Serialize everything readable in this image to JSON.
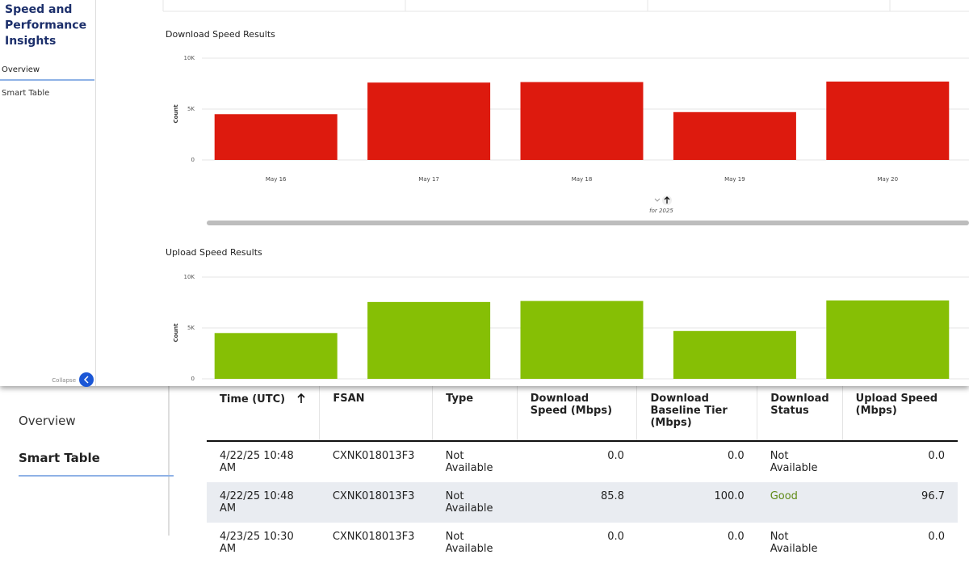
{
  "chart_data": [
    {
      "type": "bar",
      "title": "Download Speed Results",
      "y_label": "Count",
      "x_label": "for 2025",
      "categories": [
        "May 16",
        "May 17",
        "May 18",
        "May 19",
        "May 20"
      ],
      "values": [
        4500,
        7600,
        7650,
        4700,
        7700
      ],
      "color": "#dd1a0e",
      "ylim": [
        0,
        10000
      ],
      "yticks": [
        0,
        {
          "value": 5000,
          "label": "5K"
        },
        {
          "value": 10000,
          "label": "10K"
        }
      ],
      "grid": true
    },
    {
      "type": "bar",
      "title": "Upload Speed Results",
      "y_label": "Count",
      "categories": [
        null,
        null,
        null,
        null,
        null
      ],
      "values": [
        4500,
        7550,
        7650,
        4700,
        7700
      ],
      "color": "#86bf05",
      "ylim": [
        0,
        10000
      ],
      "yticks": [
        0,
        {
          "value": 5000,
          "label": "5K"
        },
        {
          "value": 10000,
          "label": "10K"
        }
      ],
      "grid": true
    }
  ],
  "sidebar": {
    "title": "Speed and Performance Insights",
    "items": [
      "Overview",
      "Smart Table"
    ],
    "collapse": "Collapse"
  },
  "back_sidebar": {
    "items": [
      "Overview",
      "Smart Table"
    ]
  },
  "table": {
    "headers": [
      "Time (UTC)",
      "FSAN",
      "Type",
      "Download Speed (Mbps)",
      "Download Baseline Tier (Mbps)",
      "Download Status",
      "Upload Speed (Mbps)"
    ],
    "rows": [
      [
        "4/22/25 10:48 AM",
        "CXNK018013F3",
        "Not Available",
        "0.0",
        "0.0",
        "Not Available",
        "0.0"
      ],
      [
        "4/22/25 10:48 AM",
        "CXNK018013F3",
        "Not Available",
        "85.8",
        "100.0",
        "Good",
        "96.7"
      ],
      [
        "4/23/25 10:30 AM",
        "CXNK018013F3",
        "Not Available",
        "0.0",
        "0.0",
        "Not Available",
        "0.0"
      ]
    ]
  }
}
